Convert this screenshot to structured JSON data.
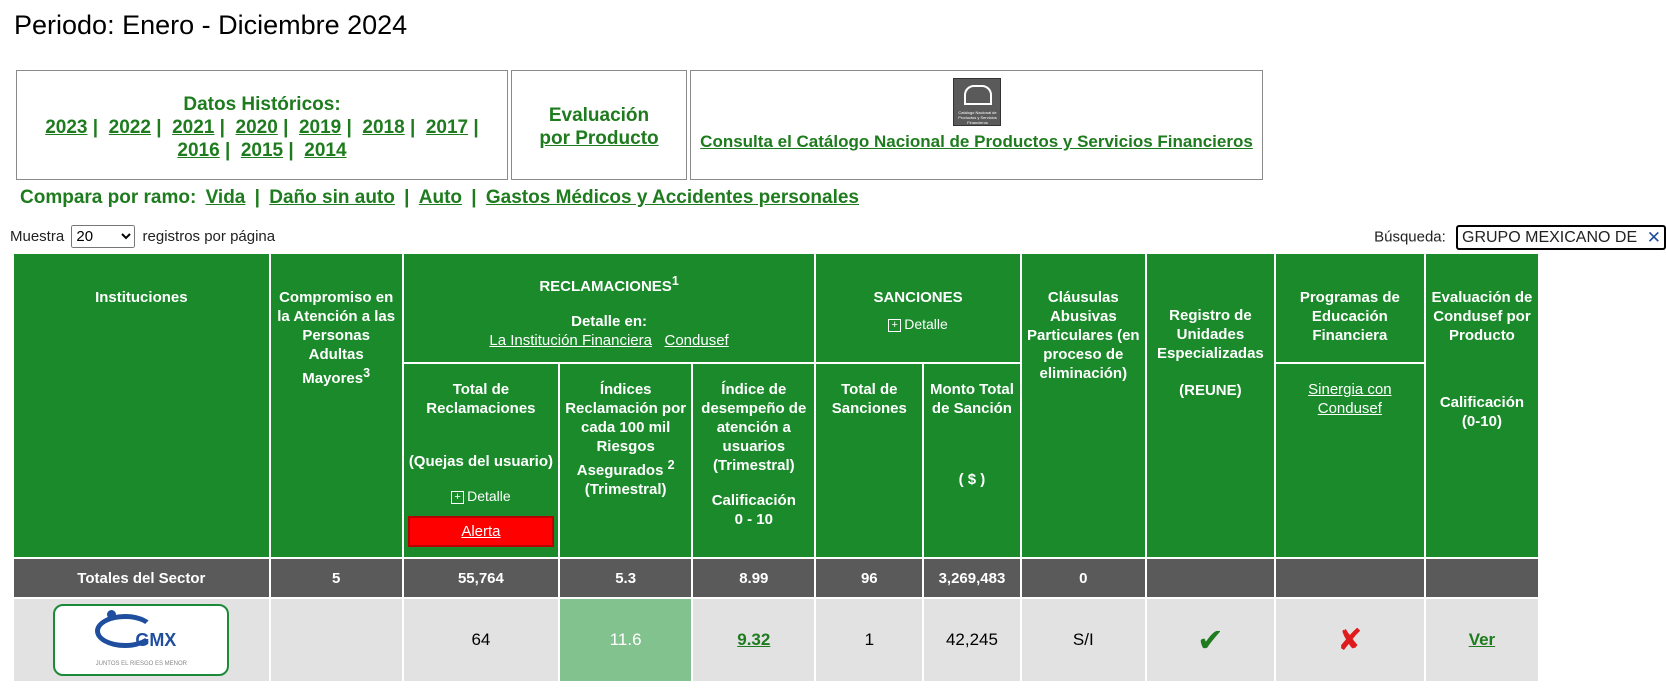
{
  "title": "Periodo: Enero - Diciembre 2024",
  "historicos": {
    "label": "Datos Históricos:",
    "years": [
      "2023",
      "2022",
      "2021",
      "2020",
      "2019",
      "2018",
      "2017",
      "2016",
      "2015",
      "2014"
    ]
  },
  "evaluacion": {
    "line1": "Evaluación",
    "line2": "por Producto"
  },
  "catalogo": {
    "logo_caption": "Catálogo Nacional de Productos y Servicios Financieros",
    "link": "Consulta el Catálogo Nacional de Productos y Servicios Financieros"
  },
  "compara": {
    "label": "Compara por ramo:",
    "items": [
      "Vida",
      "Daño sin auto",
      "Auto",
      "Gastos Médicos y Accidentes personales"
    ]
  },
  "muestra": {
    "prefix": "Muestra",
    "selected": "20",
    "suffix": "registros por página"
  },
  "busqueda": {
    "label": "Búsqueda:",
    "value": "GRUPO MEXICANO DE"
  },
  "table": {
    "headers": {
      "instituciones": "Instituciones",
      "compromiso": "Compromiso en la Atención a las Personas Adultas Mayores",
      "compromiso_sup": "3",
      "reclamaciones": "RECLAMACIONES",
      "reclamaciones_sup": "1",
      "detalle_en": "Detalle en:",
      "link_institucion": "La Institución Financiera",
      "link_condusef": "Condusef",
      "sanciones": "SANCIONES",
      "detalle": "Detalle",
      "clausulas": "Cláusulas Abusivas Particulares (en proceso de eliminación)",
      "registro": "Registro de Unidades Especializadas",
      "registro_sub": "(REUNE)",
      "programas": "Programas de Educación Financiera",
      "sinergia": "Sinergia con Condusef",
      "evaluacion": "Evaluación de Condusef por Producto",
      "calif_010": "Calificación (0-10)",
      "total_rec": "Total de Reclamaciones",
      "quejas": "(Quejas del usuario)",
      "alerta": "Alerta",
      "indices": "Índices Reclamación por cada 100 mil Riesgos Asegurados",
      "indices_sup": "2",
      "trimestral": "(Trimestral)",
      "indice_desemp": "Índice de desempeño de atención a usuarios (Trimestral)",
      "calificacion": "Calificación",
      "rango": "0 - 10",
      "total_sanc": "Total de Sanciones",
      "monto": "Monto Total de Sanción",
      "moneda": "( $ )"
    },
    "totales": {
      "label": "Totales del Sector",
      "compromiso": "5",
      "total_rec": "55,764",
      "indices": "5.3",
      "indice_desemp": "8.99",
      "total_sanc": "96",
      "monto": "3,269,483",
      "clausulas": "0"
    },
    "row": {
      "institucion_logo_text": "GMX",
      "institucion_tagline": "JUNTOS EL RIESGO ES MENOR",
      "total_rec": "64",
      "indices": "11.6",
      "indice_desemp": "9.32",
      "total_sanc": "1",
      "monto": "42,245",
      "clausulas": "S/I",
      "reune": "✔",
      "programas": "✘",
      "evaluacion": "Ver"
    }
  },
  "colors": {
    "header_green": "#1a8a2a",
    "totals_gray": "#5a5a5a",
    "alert_red": "#ff0000",
    "highlight": "#82c28e"
  }
}
